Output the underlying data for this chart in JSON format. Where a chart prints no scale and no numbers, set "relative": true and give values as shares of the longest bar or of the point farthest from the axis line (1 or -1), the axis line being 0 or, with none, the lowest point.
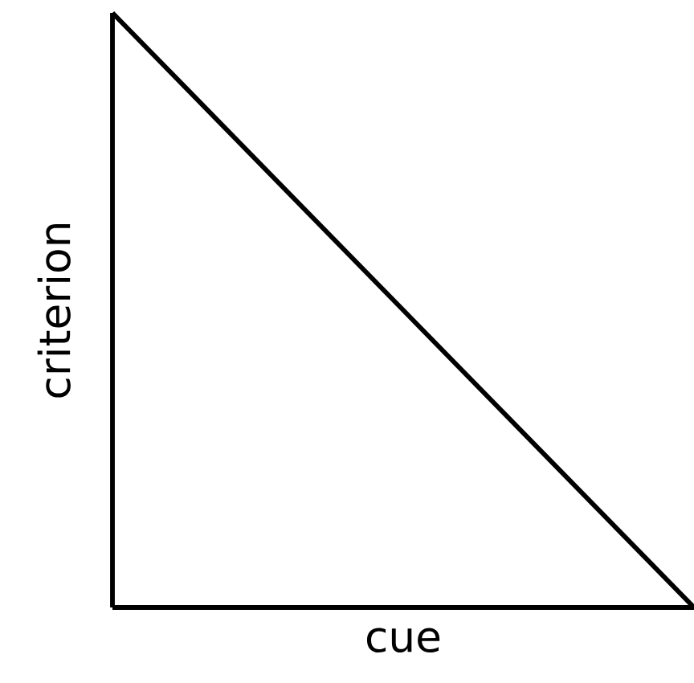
{
  "chart_data": {
    "type": "line",
    "relative": true,
    "xlabel": "cue",
    "ylabel": "criterion",
    "categories": [
      null,
      null
    ],
    "series": [
      {
        "color": "#000000",
        "values": [
          1,
          0
        ]
      }
    ]
  }
}
